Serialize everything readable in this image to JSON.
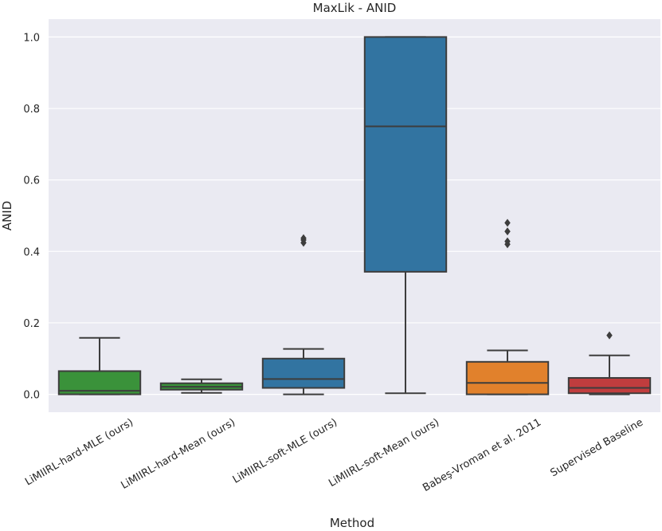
{
  "chart_data": {
    "type": "box",
    "title": "MaxLik - ANID",
    "xlabel": "Method",
    "ylabel": "ANID",
    "ylim": [
      -0.05,
      1.05
    ],
    "yticks": [
      0.0,
      0.2,
      0.4,
      0.6,
      0.8,
      1.0
    ],
    "ytick_labels": [
      "0.0",
      "0.2",
      "0.4",
      "0.6",
      "0.8",
      "1.0"
    ],
    "grid": true,
    "colors": {
      "background": "#eaeaf2",
      "grid": "#ffffff",
      "line": "#3d3d3d"
    },
    "boxes": [
      {
        "category": "LiMIIRL-hard-MLE (ours)",
        "color": "#3a923a",
        "whislo": 0.0,
        "q1": 0.0,
        "med": 0.01,
        "q3": 0.065,
        "whishi": 0.158,
        "fliers": []
      },
      {
        "category": "LiMIIRL-hard-Mean (ours)",
        "color": "#3a923a",
        "whislo": 0.004,
        "q1": 0.013,
        "med": 0.021,
        "q3": 0.031,
        "whishi": 0.042,
        "fliers": []
      },
      {
        "category": "LiMIIRL-soft-MLE (ours)",
        "color": "#3274a1",
        "whislo": 0.0,
        "q1": 0.018,
        "med": 0.043,
        "q3": 0.1,
        "whishi": 0.127,
        "fliers": [
          0.424,
          0.432,
          0.437
        ]
      },
      {
        "category": "LiMIIRL-soft-Mean (ours)",
        "color": "#3274a1",
        "whislo": 0.003,
        "q1": 0.343,
        "med": 0.75,
        "q3": 1.0,
        "whishi": 1.0,
        "fliers": []
      },
      {
        "category": "Babeş-Vroman et al. 2011",
        "color": "#e1812c",
        "whislo": 0.0,
        "q1": 0.0,
        "med": 0.032,
        "q3": 0.091,
        "whishi": 0.123,
        "fliers": [
          0.42,
          0.428,
          0.456,
          0.48
        ]
      },
      {
        "category": "Supervised Baseline",
        "color": "#c03d3e",
        "whislo": 0.0,
        "q1": 0.003,
        "med": 0.018,
        "q3": 0.046,
        "whishi": 0.109,
        "fliers": [
          0.165
        ]
      }
    ]
  }
}
